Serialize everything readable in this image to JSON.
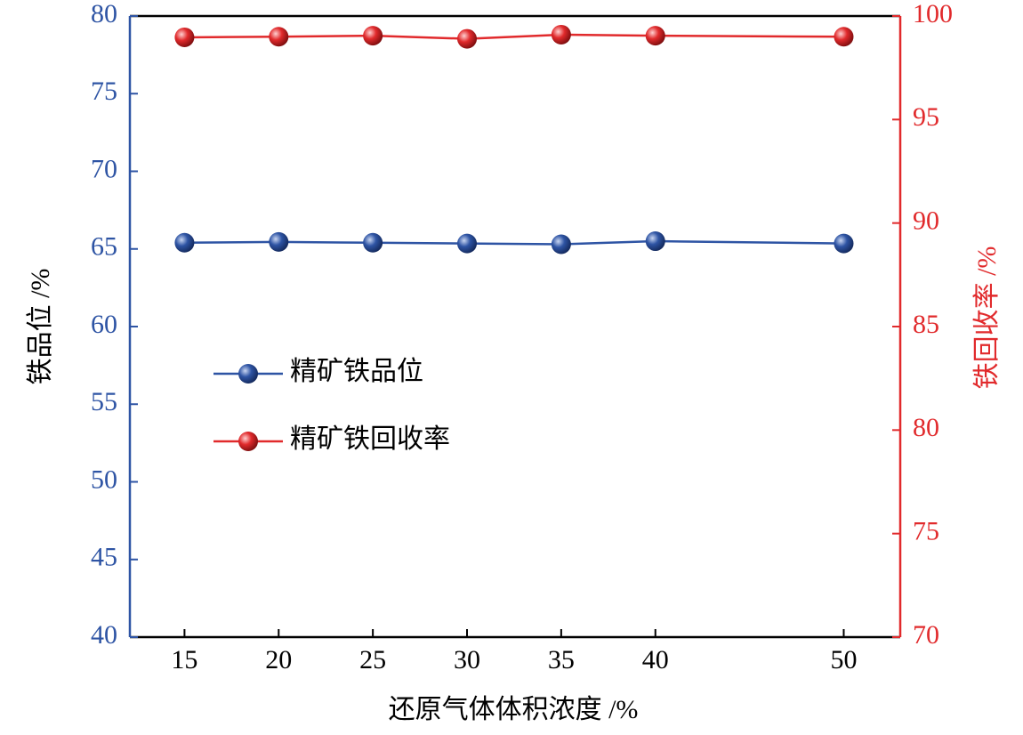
{
  "chart_data": {
    "type": "line",
    "x": [
      15,
      20,
      25,
      30,
      35,
      40,
      50
    ],
    "xlim": [
      12.1,
      53
    ],
    "xticks": [
      15,
      20,
      25,
      30,
      35,
      40,
      50
    ],
    "xlabel": "还原气体体积浓度 /%",
    "ylabel": "铁品位 /%",
    "ylim": [
      40,
      80
    ],
    "yticks": [
      40,
      45,
      50,
      55,
      60,
      65,
      70,
      75,
      80
    ],
    "y2label": "铁回收率 /%",
    "y2lim": [
      70,
      100
    ],
    "y2ticks": [
      70,
      75,
      80,
      85,
      90,
      95,
      100
    ],
    "series": [
      {
        "name": "精矿铁品位",
        "color": "#2e54a4",
        "values": [
          65.4,
          65.45,
          65.4,
          65.35,
          65.3,
          65.5,
          65.35
        ]
      },
      {
        "name": "精矿铁回收率",
        "color": "#e12a2c",
        "axis": "y2",
        "values": [
          98.97,
          99.0,
          99.05,
          98.9,
          99.1,
          99.05,
          99.0
        ]
      }
    ]
  }
}
